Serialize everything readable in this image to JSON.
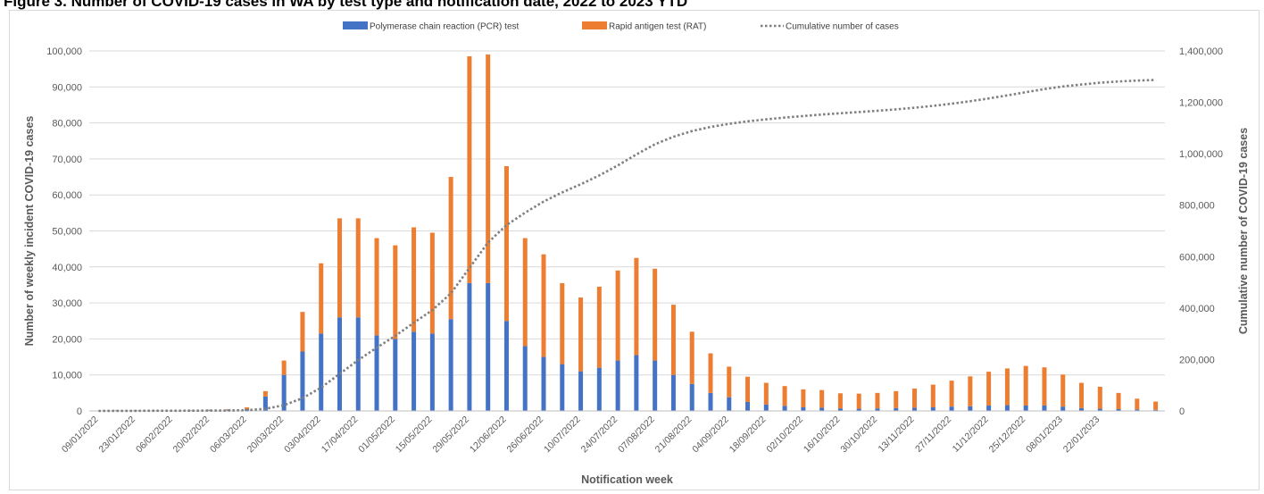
{
  "figure": {
    "title": "Figure 3. Number of COVID-19 cases in WA by test type and notification date, 2022 to 2023 YTD"
  },
  "chart_data": {
    "type": "bar",
    "stacked": true,
    "title": "",
    "xlabel": "Notification week",
    "ylabel": "Number of weekly incident COVID-19 cases",
    "y2label": "Cumulative number of COVID-19 cases",
    "ylim": [
      0,
      100000
    ],
    "y2lim": [
      0,
      1400000
    ],
    "y_ticks": [
      "0",
      "10,000",
      "20,000",
      "30,000",
      "40,000",
      "50,000",
      "60,000",
      "70,000",
      "80,000",
      "90,000",
      "100,000"
    ],
    "y2_ticks": [
      "0",
      "200,000",
      "400,000",
      "600,000",
      "800,000",
      "1,000,000",
      "1,200,000",
      "1,400,000"
    ],
    "x_tick_labels": [
      "09/01/2022",
      "23/01/2022",
      "06/02/2022",
      "20/02/2022",
      "06/03/2022",
      "20/03/2022",
      "03/04/2022",
      "17/04/2022",
      "01/05/2022",
      "15/05/2022",
      "29/05/2022",
      "12/06/2022",
      "26/06/2022",
      "10/07/2022",
      "24/07/2022",
      "07/08/2022",
      "21/08/2022",
      "04/09/2022",
      "18/09/2022",
      "02/10/2022",
      "16/10/2022",
      "30/10/2022",
      "13/11/2022",
      "27/11/2022",
      "11/12/2022",
      "25/12/2022",
      "08/01/2023",
      "22/01/2023"
    ],
    "grid": true,
    "legend_position": "top-center",
    "colors": {
      "pcr": "#4472c4",
      "rat": "#ed7d31",
      "cumulative": "#7f7f7f"
    },
    "series": [
      {
        "name": "Polymerase chain reaction (PCR) test",
        "type": "bar",
        "values": [
          100,
          200,
          200,
          150,
          100,
          200,
          250,
          300,
          500,
          4000,
          10000,
          16500,
          21500,
          26000,
          26000,
          21000,
          20000,
          22000,
          21500,
          25500,
          35500,
          35500,
          25000,
          18000,
          15000,
          13000,
          11000,
          12000,
          14000,
          15500,
          14000,
          10000,
          7500,
          5000,
          3800,
          2500,
          1800,
          1400,
          1000,
          900,
          700,
          600,
          700,
          800,
          900,
          1000,
          1200,
          1300,
          1500,
          1600,
          1500,
          1500,
          1200,
          800,
          600,
          500,
          400,
          300
        ]
      },
      {
        "name": "Rapid antigen test (RAT)",
        "type": "bar",
        "values": [
          0,
          0,
          0,
          0,
          0,
          0,
          100,
          200,
          500,
          1500,
          4000,
          11000,
          19500,
          27500,
          27500,
          27000,
          26000,
          29000,
          28000,
          39500,
          63000,
          63500,
          43000,
          30000,
          28500,
          22500,
          20500,
          22500,
          25000,
          27000,
          25500,
          19500,
          14500,
          11000,
          8500,
          7000,
          6000,
          5500,
          5000,
          4900,
          4200,
          4200,
          4300,
          4700,
          5300,
          6300,
          7200,
          8300,
          9400,
          10200,
          11000,
          10600,
          8900,
          7000,
          6100,
          4500,
          3000,
          2300
        ]
      },
      {
        "name": "Cumulative number of cases",
        "type": "line",
        "axis": "right",
        "values": [
          100,
          300,
          500,
          650,
          750,
          950,
          1300,
          1800,
          2800,
          8300,
          22300,
          49800,
          90800,
          144300,
          197800,
          245800,
          291800,
          342800,
          392300,
          457300,
          555800,
          654800,
          722800,
          770800,
          814300,
          849800,
          881300,
          915800,
          954800,
          997300,
          1036800,
          1066300,
          1088300,
          1104300,
          1116600,
          1126100,
          1133900,
          1140800,
          1146800,
          1152600,
          1157500,
          1162300,
          1167300,
          1172800,
          1179000,
          1186300,
          1194700,
          1204300,
          1215200,
          1227000,
          1239500,
          1251600,
          1261700,
          1269500,
          1276200,
          1281200,
          1284600,
          1287200
        ]
      }
    ]
  }
}
